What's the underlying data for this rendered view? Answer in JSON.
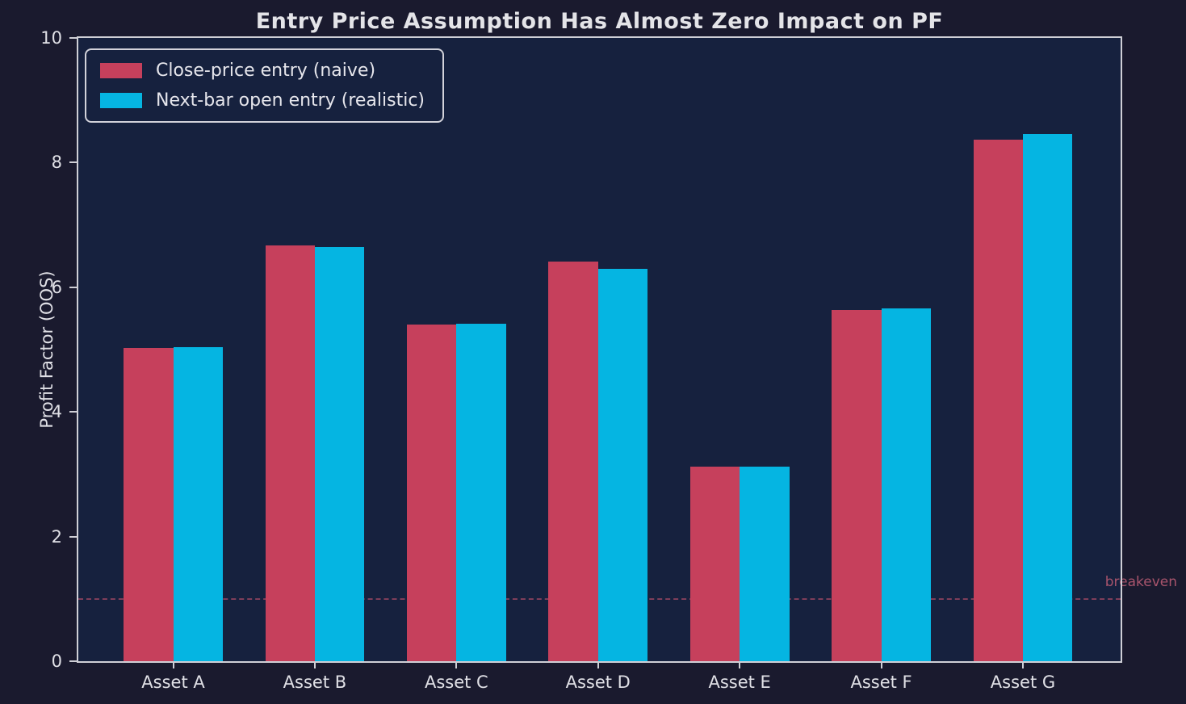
{
  "chart_data": {
    "type": "bar",
    "title": "Entry Price Assumption Has Almost Zero Impact on PF",
    "ylabel": "Profit Factor (OOS)",
    "xlabel": "",
    "categories": [
      "Asset A",
      "Asset B",
      "Asset C",
      "Asset D",
      "Asset E",
      "Asset F",
      "Asset G"
    ],
    "series": [
      {
        "name": "Close-price entry (naive)",
        "color": "#c6405c",
        "values": [
          5.03,
          6.67,
          5.4,
          6.41,
          3.12,
          5.64,
          8.37
        ]
      },
      {
        "name": "Next-bar open entry (realistic)",
        "color": "#05b5e2",
        "values": [
          5.04,
          6.64,
          5.42,
          6.3,
          3.12,
          5.66,
          8.46
        ]
      }
    ],
    "ylim": [
      0,
      10
    ],
    "yticks": [
      0,
      2,
      4,
      6,
      8,
      10
    ],
    "grid": false,
    "legend_position": "upper left",
    "annotations": [
      {
        "type": "hline",
        "y": 1.0,
        "style": "dashed",
        "label": "breakeven",
        "color": "#a8546c"
      }
    ]
  },
  "colors": {
    "figure_bg": "#1a1a2e",
    "axes_bg": "#16213e",
    "spine": "#cfcfd6",
    "tick_label": "#e0e0e6",
    "title": "#e4e4e8"
  }
}
